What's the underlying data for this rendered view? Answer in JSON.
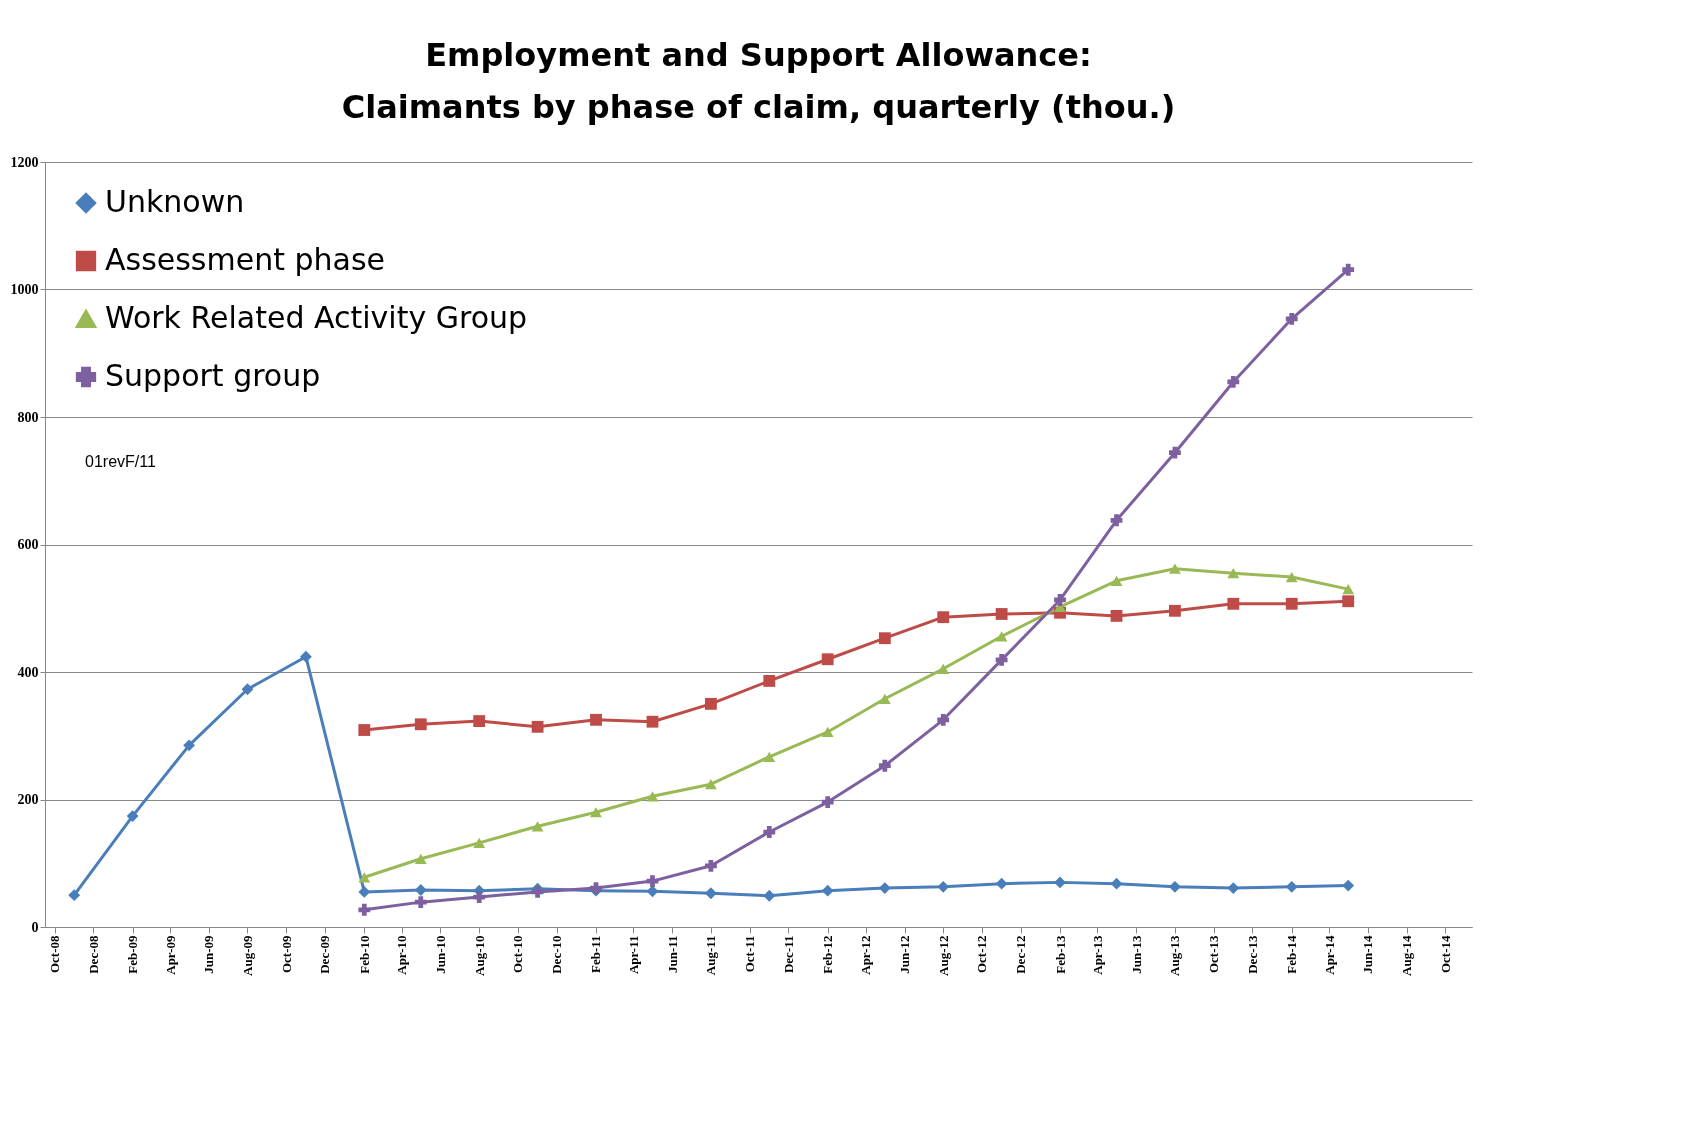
{
  "chart_data": {
    "type": "line",
    "title": "Employment and Support Allowance:\nClaimants by phase of claim, quarterly (thou.)",
    "x": [
      "2008-11",
      "2009-02",
      "2009-05",
      "2009-08",
      "2009-11",
      "2010-02",
      "2010-05",
      "2010-08",
      "2010-11",
      "2011-02",
      "2011-05",
      "2011-08",
      "2011-11",
      "2012-02",
      "2012-05",
      "2012-08",
      "2012-11",
      "2013-02",
      "2013-05",
      "2013-08",
      "2013-11",
      "2014-02",
      "2014-05"
    ],
    "series": [
      {
        "name": "Unknown",
        "color": "#4a7ebb",
        "marker": "diamond",
        "values": [
          50,
          174,
          285,
          373,
          424,
          55,
          58,
          57,
          60,
          57,
          56,
          53,
          49,
          57,
          61,
          63,
          68,
          70,
          68,
          63,
          61,
          63,
          65
        ]
      },
      {
        "name": "Assessment phase",
        "color": "#be4b48",
        "marker": "square",
        "values": [
          null,
          null,
          null,
          null,
          null,
          309,
          318,
          323,
          314,
          325,
          322,
          350,
          386,
          420,
          453,
          486,
          491,
          493,
          488,
          496,
          507,
          507,
          511
        ]
      },
      {
        "name": "Work Related Activity Group",
        "color": "#98b954",
        "marker": "triangle",
        "values": [
          null,
          null,
          null,
          null,
          null,
          78,
          107,
          132,
          158,
          180,
          205,
          224,
          267,
          306,
          358,
          405,
          456,
          502,
          543,
          562,
          555,
          549,
          530
        ]
      },
      {
        "name": "Support group",
        "color": "#7d60a0",
        "marker": "cross",
        "values": [
          null,
          null,
          null,
          null,
          null,
          27,
          39,
          47,
          55,
          61,
          72,
          96,
          149,
          196,
          253,
          325,
          419,
          513,
          638,
          744,
          855,
          954,
          1031
        ]
      }
    ],
    "xlim": [
      "2008-09-16",
      "2014-11-12"
    ],
    "xticks": [
      {
        "value": "2008-10",
        "label": "Oct-08"
      },
      {
        "value": "2008-12",
        "label": "Dec-08"
      },
      {
        "value": "2009-02",
        "label": "Feb-09"
      },
      {
        "value": "2009-04",
        "label": "Apr-09"
      },
      {
        "value": "2009-06",
        "label": "Jun-09"
      },
      {
        "value": "2009-08",
        "label": "Aug-09"
      },
      {
        "value": "2009-10",
        "label": "Oct-09"
      },
      {
        "value": "2009-12",
        "label": "Dec-09"
      },
      {
        "value": "2010-02",
        "label": "Feb-10"
      },
      {
        "value": "2010-04",
        "label": "Apr-10"
      },
      {
        "value": "2010-06",
        "label": "Jun-10"
      },
      {
        "value": "2010-08",
        "label": "Aug-10"
      },
      {
        "value": "2010-10",
        "label": "Oct-10"
      },
      {
        "value": "2010-12",
        "label": "Dec-10"
      },
      {
        "value": "2011-02",
        "label": "Feb-11"
      },
      {
        "value": "2011-04",
        "label": "Apr-11"
      },
      {
        "value": "2011-06",
        "label": "Jun-11"
      },
      {
        "value": "2011-08",
        "label": "Aug-11"
      },
      {
        "value": "2011-10",
        "label": "Oct-11"
      },
      {
        "value": "2011-12",
        "label": "Dec-11"
      },
      {
        "value": "2012-02",
        "label": "Feb-12"
      },
      {
        "value": "2012-04",
        "label": "Apr-12"
      },
      {
        "value": "2012-06",
        "label": "Jun-12"
      },
      {
        "value": "2012-08",
        "label": "Aug-12"
      },
      {
        "value": "2012-10",
        "label": "Oct-12"
      },
      {
        "value": "2012-12",
        "label": "Dec-12"
      },
      {
        "value": "2013-02",
        "label": "Feb-13"
      },
      {
        "value": "2013-04",
        "label": "Apr-13"
      },
      {
        "value": "2013-06",
        "label": "Jun-13"
      },
      {
        "value": "2013-08",
        "label": "Aug-13"
      },
      {
        "value": "2013-10",
        "label": "Oct-13"
      },
      {
        "value": "2013-12",
        "label": "Dec-13"
      },
      {
        "value": "2014-02",
        "label": "Feb-14"
      },
      {
        "value": "2014-04",
        "label": "Apr-14"
      },
      {
        "value": "2014-06",
        "label": "Jun-14"
      },
      {
        "value": "2014-08",
        "label": "Aug-14"
      },
      {
        "value": "2014-10",
        "label": "Oct-14"
      }
    ],
    "ylim": [
      0,
      1200
    ],
    "yticks": [
      0,
      200,
      400,
      600,
      800,
      1000,
      1200
    ],
    "grid": "y",
    "legend": "top left",
    "line_style": "solid",
    "annotations": [
      "01revF/11"
    ]
  }
}
